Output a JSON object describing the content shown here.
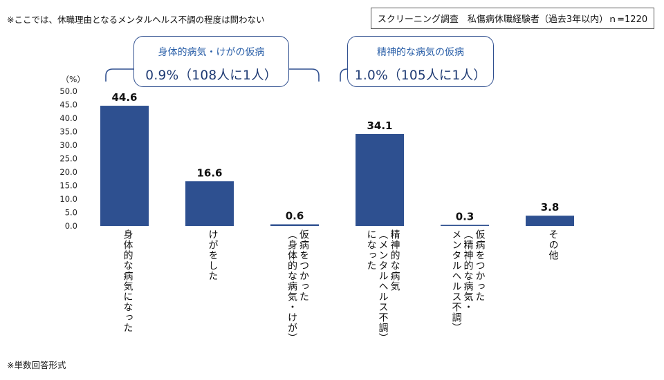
{
  "header": {
    "note": "※ここでは、休職理由となるメンタルヘルス不調の程度は問わない",
    "survey": "スクリーニング調査　私傷病休職経験者（過去3年以内）ｎ=1220"
  },
  "callouts": [
    {
      "title": "身体的病気・けがの仮病",
      "value": "0.9%（108人に1人）"
    },
    {
      "title": "精神的な病気の仮病",
      "value": "1.0%（105人に1人）"
    }
  ],
  "footer": {
    "note": "※単数回答形式"
  },
  "chart_data": {
    "type": "bar",
    "ylabel": "（%）",
    "ylim": [
      0,
      50
    ],
    "yticks": [
      "0.0",
      "5.0",
      "10.0",
      "15.0",
      "20.0",
      "25.0",
      "30.0",
      "35.0",
      "40.0",
      "45.0",
      "50.0"
    ],
    "categories": [
      "身体的な病気になった",
      "けがをした",
      "仮病をつかった\n（身体的な病気・けが）",
      "精神的な病気\n（メンタルヘルス不調）\nになった",
      "仮病をつかった\n（精神的な病気・\nメンタルヘルス不調）",
      "その他"
    ],
    "values": [
      44.6,
      16.6,
      0.6,
      34.1,
      0.3,
      3.8
    ],
    "value_labels": [
      "44.6",
      "16.6",
      "0.6",
      "34.1",
      "0.3",
      "3.8"
    ],
    "colors": {
      "bar": "#2e5090",
      "axis": "#444444",
      "callout": "#2f4f8f"
    }
  }
}
